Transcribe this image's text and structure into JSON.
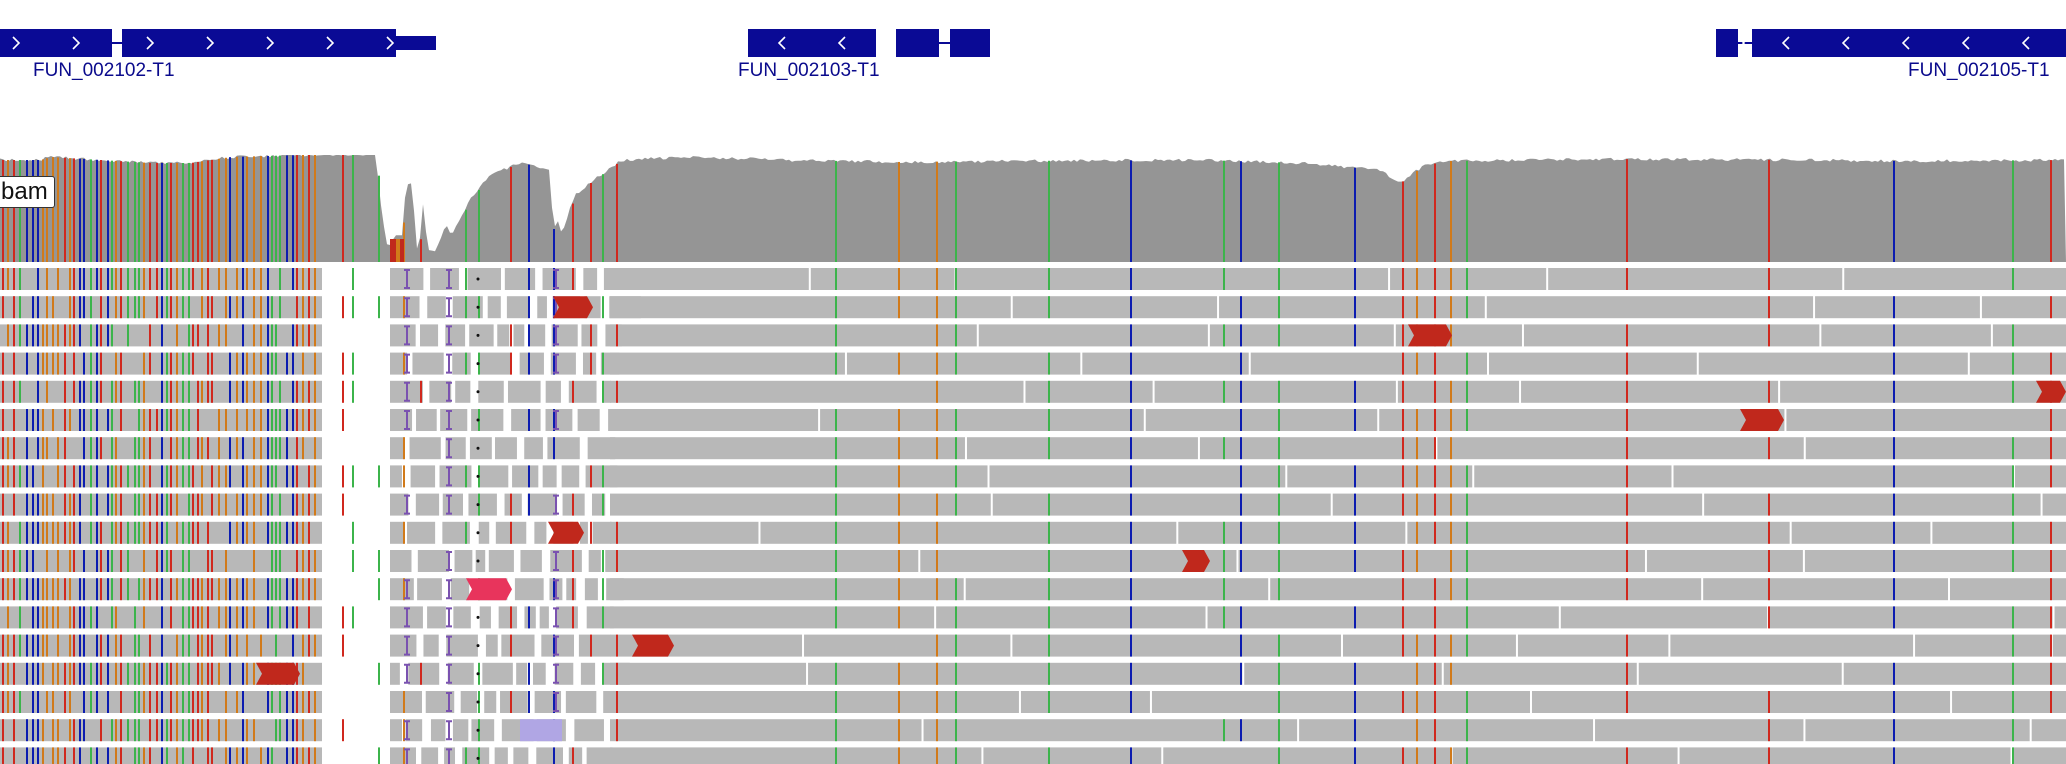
{
  "genes": [
    {
      "name": "FUN_002102-T1",
      "strand": "+",
      "label_left": 33
    },
    {
      "name": "FUN_002103-T1",
      "strand": "-",
      "label_left": 738
    },
    {
      "name": "FUN_002105-T1",
      "strand": "-",
      "label_left": 1908
    }
  ],
  "track_label": "bam",
  "colors": {
    "gene": "#0a0a95",
    "coverage": "#959595",
    "read": "#b8b8b8",
    "mismatch_A": "#3cb44b",
    "mismatch_C": "#0c1cb0",
    "mismatch_G": "#d17a1a",
    "mismatch_T": "#d0281e",
    "softclip": "#c0281c",
    "insertion": "#7a52b0",
    "clip_pink": "#e8345c"
  },
  "icons": [
    "strand-arrow-right-icon",
    "strand-arrow-left-icon"
  ]
}
